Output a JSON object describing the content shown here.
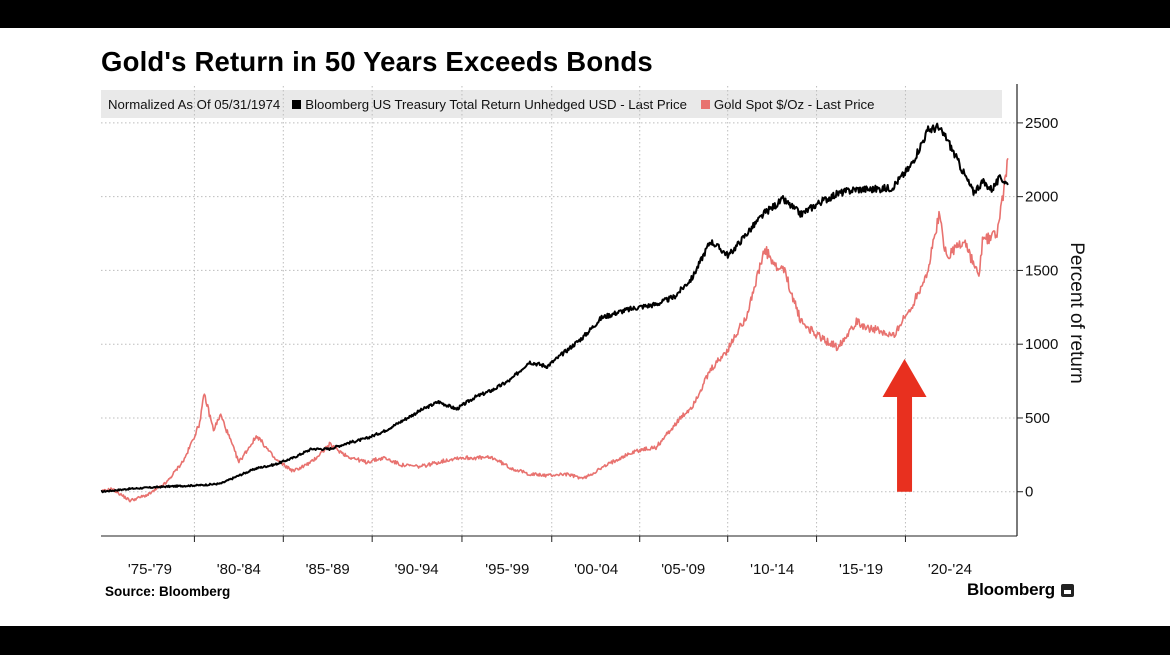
{
  "chart_data": {
    "type": "line",
    "title": "Gold's Return in 50 Years Exceeds Bonds",
    "subtitle": "Normalized As Of 05/31/1974",
    "ylabel": "Percent of return",
    "xlabel": "",
    "source": "Source: Bloomberg",
    "brand": "Bloomberg",
    "ylim": [
      -300,
      2750
    ],
    "xlim": [
      1974.4,
      2024.9
    ],
    "yticks": [
      0,
      500,
      1000,
      1500,
      2000,
      2500
    ],
    "ytick_labels": [
      "0",
      "500",
      "1000",
      "1500",
      "2000",
      "2500"
    ],
    "xtick_labels": [
      {
        "label": "'75-'79",
        "center": 1977.1
      },
      {
        "label": "'80-'84",
        "center": 1982.0
      },
      {
        "label": "'85-'89",
        "center": 1986.9
      },
      {
        "label": "'90-'94",
        "center": 1991.8
      },
      {
        "label": "'95-'99",
        "center": 1996.8
      },
      {
        "label": "'00-'04",
        "center": 2001.7
      },
      {
        "label": "'05-'09",
        "center": 2006.5
      },
      {
        "label": "'10-'14",
        "center": 2011.4
      },
      {
        "label": "'15-'19",
        "center": 2016.3
      },
      {
        "label": "'20-'24",
        "center": 2021.2
      }
    ],
    "grid": true,
    "legend_position": "top",
    "series": [
      {
        "name": "Bloomberg US Treasury Total Return Unhedged USD - Last Price",
        "color": "#000000",
        "points": [
          [
            1974.4,
            0
          ],
          [
            1976,
            20
          ],
          [
            1978,
            35
          ],
          [
            1980,
            45
          ],
          [
            1981,
            55
          ],
          [
            1982,
            110
          ],
          [
            1983,
            160
          ],
          [
            1984,
            185
          ],
          [
            1985,
            230
          ],
          [
            1986,
            290
          ],
          [
            1987,
            290
          ],
          [
            1988,
            330
          ],
          [
            1989,
            360
          ],
          [
            1990,
            410
          ],
          [
            1991,
            480
          ],
          [
            1992,
            550
          ],
          [
            1993,
            610
          ],
          [
            1994,
            560
          ],
          [
            1995,
            640
          ],
          [
            1996,
            690
          ],
          [
            1997,
            760
          ],
          [
            1998,
            880
          ],
          [
            1999,
            850
          ],
          [
            2000,
            950
          ],
          [
            2001,
            1050
          ],
          [
            2002,
            1180
          ],
          [
            2003,
            1220
          ],
          [
            2004,
            1250
          ],
          [
            2005,
            1270
          ],
          [
            2006,
            1320
          ],
          [
            2007,
            1450
          ],
          [
            2008,
            1700
          ],
          [
            2009,
            1600
          ],
          [
            2010,
            1750
          ],
          [
            2011,
            1890
          ],
          [
            2012,
            1980
          ],
          [
            2013,
            1880
          ],
          [
            2014,
            1960
          ],
          [
            2015,
            2020
          ],
          [
            2016,
            2050
          ],
          [
            2017,
            2050
          ],
          [
            2018,
            2060
          ],
          [
            2019,
            2200
          ],
          [
            2020,
            2450
          ],
          [
            2020.5,
            2470
          ],
          [
            2021,
            2400
          ],
          [
            2022,
            2150
          ],
          [
            2022.5,
            2030
          ],
          [
            2023,
            2100
          ],
          [
            2023.5,
            2050
          ],
          [
            2024,
            2130
          ],
          [
            2024.4,
            2080
          ]
        ]
      },
      {
        "name": "Gold Spot $/Oz - Last Price",
        "color": "#e8726f",
        "points": [
          [
            1974.4,
            0
          ],
          [
            1975,
            20
          ],
          [
            1976,
            -60
          ],
          [
            1977,
            -20
          ],
          [
            1978,
            60
          ],
          [
            1979,
            220
          ],
          [
            1979.8,
            450
          ],
          [
            1980.1,
            660
          ],
          [
            1980.6,
            420
          ],
          [
            1981,
            520
          ],
          [
            1982,
            200
          ],
          [
            1983,
            380
          ],
          [
            1984,
            220
          ],
          [
            1985,
            140
          ],
          [
            1986,
            200
          ],
          [
            1987,
            320
          ],
          [
            1988,
            240
          ],
          [
            1989,
            200
          ],
          [
            1990,
            230
          ],
          [
            1991,
            180
          ],
          [
            1992,
            170
          ],
          [
            1993,
            200
          ],
          [
            1994,
            230
          ],
          [
            1995,
            230
          ],
          [
            1996,
            230
          ],
          [
            1997,
            160
          ],
          [
            1998,
            120
          ],
          [
            1999,
            110
          ],
          [
            2000,
            120
          ],
          [
            2001,
            90
          ],
          [
            2002,
            160
          ],
          [
            2003,
            230
          ],
          [
            2004,
            280
          ],
          [
            2005,
            300
          ],
          [
            2006,
            450
          ],
          [
            2007,
            580
          ],
          [
            2008,
            820
          ],
          [
            2009,
            970
          ],
          [
            2010,
            1200
          ],
          [
            2011,
            1640
          ],
          [
            2011.7,
            1500
          ],
          [
            2012,
            1520
          ],
          [
            2013,
            1150
          ],
          [
            2014,
            1050
          ],
          [
            2015,
            980
          ],
          [
            2016,
            1150
          ],
          [
            2017,
            1100
          ],
          [
            2018,
            1050
          ],
          [
            2019,
            1230
          ],
          [
            2020,
            1500
          ],
          [
            2020.6,
            1880
          ],
          [
            2021,
            1600
          ],
          [
            2022,
            1700
          ],
          [
            2022.8,
            1450
          ],
          [
            2023,
            1700
          ],
          [
            2023.8,
            1750
          ],
          [
            2024,
            1900
          ],
          [
            2024.4,
            2260
          ]
        ]
      }
    ],
    "annotations": [
      {
        "type": "arrow",
        "color": "#e8301f",
        "direction": "up",
        "x": 2018.7,
        "y_from": 0,
        "y_to": 900
      }
    ],
    "colors": {
      "bond": "#000000",
      "gold": "#e8726f",
      "arrow": "#e8301f",
      "grid": "#bdbdbd"
    }
  }
}
